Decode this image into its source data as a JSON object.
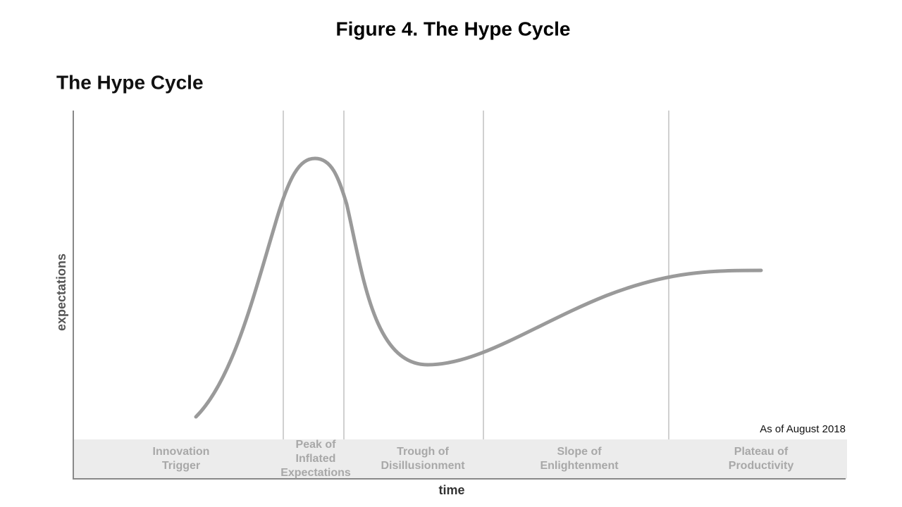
{
  "figure_title": "Figure 4. The Hype Cycle",
  "title": "The Hype Cycle",
  "y_axis_label": "expectations",
  "x_axis_label": "time",
  "note": "As of August 2018",
  "phases": [
    {
      "lines": [
        "Innovation",
        "Trigger"
      ]
    },
    {
      "lines": [
        "Peak of",
        "Inflated",
        "Expectations"
      ]
    },
    {
      "lines": [
        "Trough of",
        "Disillusionment"
      ]
    },
    {
      "lines": [
        "Slope of",
        "Enlightenment"
      ]
    },
    {
      "lines": [
        "Plateau of",
        "Productivity"
      ]
    }
  ]
}
